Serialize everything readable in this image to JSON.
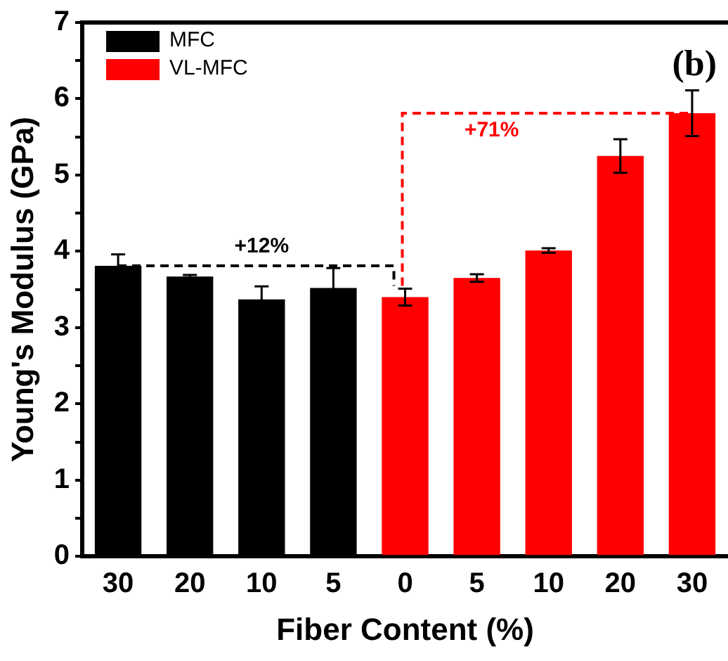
{
  "chart_data": {
    "type": "bar",
    "xlabel": "Fiber Content (%)",
    "ylabel": "Young's Modulus (GPa)",
    "categories": [
      "30",
      "20",
      "10",
      "5",
      "0",
      "5",
      "10",
      "20",
      "30"
    ],
    "series": [
      {
        "name": "MFC",
        "color": "#000000",
        "values": [
          3.81,
          3.67,
          3.37,
          3.52,
          null,
          null,
          null,
          null,
          null
        ],
        "errors": [
          0.15,
          0.02,
          0.17,
          0.26,
          null,
          null,
          null,
          null,
          null
        ]
      },
      {
        "name": "VL-MFC",
        "color": "#ff0000",
        "values": [
          null,
          null,
          null,
          null,
          3.4,
          3.65,
          4.01,
          5.25,
          5.81
        ],
        "errors": [
          null,
          null,
          null,
          null,
          0.11,
          0.05,
          0.03,
          0.22,
          0.3
        ]
      }
    ],
    "ylim": [
      0,
      7
    ],
    "yticks": [
      0,
      {
        "value": 0.5,
        "label": null
      },
      1,
      {
        "value": 1.5,
        "label": null
      },
      2,
      {
        "value": 2.5,
        "label": null
      },
      3,
      {
        "value": 3.5,
        "label": null
      },
      4,
      {
        "value": 4.5,
        "label": null
      },
      5,
      {
        "value": 5.5,
        "label": null
      },
      6,
      {
        "value": 6.5,
        "label": null
      },
      7
    ],
    "annotations": [
      "+12%",
      "+71%",
      "(b)"
    ],
    "legend": "top left",
    "grid": false
  }
}
